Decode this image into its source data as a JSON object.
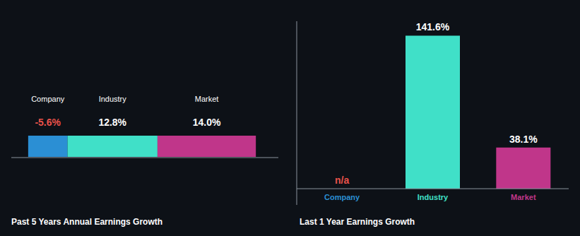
{
  "chart_data": [
    {
      "type": "bar",
      "orientation": "horizontal",
      "stacked": true,
      "title": "Past 5 Years Annual Earnings Growth",
      "categories": [
        null
      ],
      "series": [
        {
          "name": "Company",
          "color": "#2b8fd4",
          "values": [
            -5.6
          ],
          "value_labels": [
            "-5.6%"
          ]
        },
        {
          "name": "Industry",
          "color": "#40e0c8",
          "values": [
            12.8
          ],
          "value_labels": [
            "12.8%"
          ]
        },
        {
          "name": "Market",
          "color": "#c0368a",
          "values": [
            14.0
          ],
          "value_labels": [
            "14.0%"
          ]
        }
      ],
      "xlim": [
        -8,
        30
      ],
      "data_labels": true,
      "tick_labels": false
    },
    {
      "type": "bar",
      "title": "Last 1 Year Earnings Growth",
      "categories": [
        "Company",
        "Industry",
        "Market"
      ],
      "values": [
        null,
        141.6,
        38.1
      ],
      "value_labels": [
        "n/a",
        "141.6%",
        "38.1%"
      ],
      "colors": [
        "#2b8fd4",
        "#40e0c8",
        "#c0368a"
      ],
      "ylim": [
        -15,
        155
      ],
      "data_labels": true,
      "tick_labels": "x"
    }
  ]
}
